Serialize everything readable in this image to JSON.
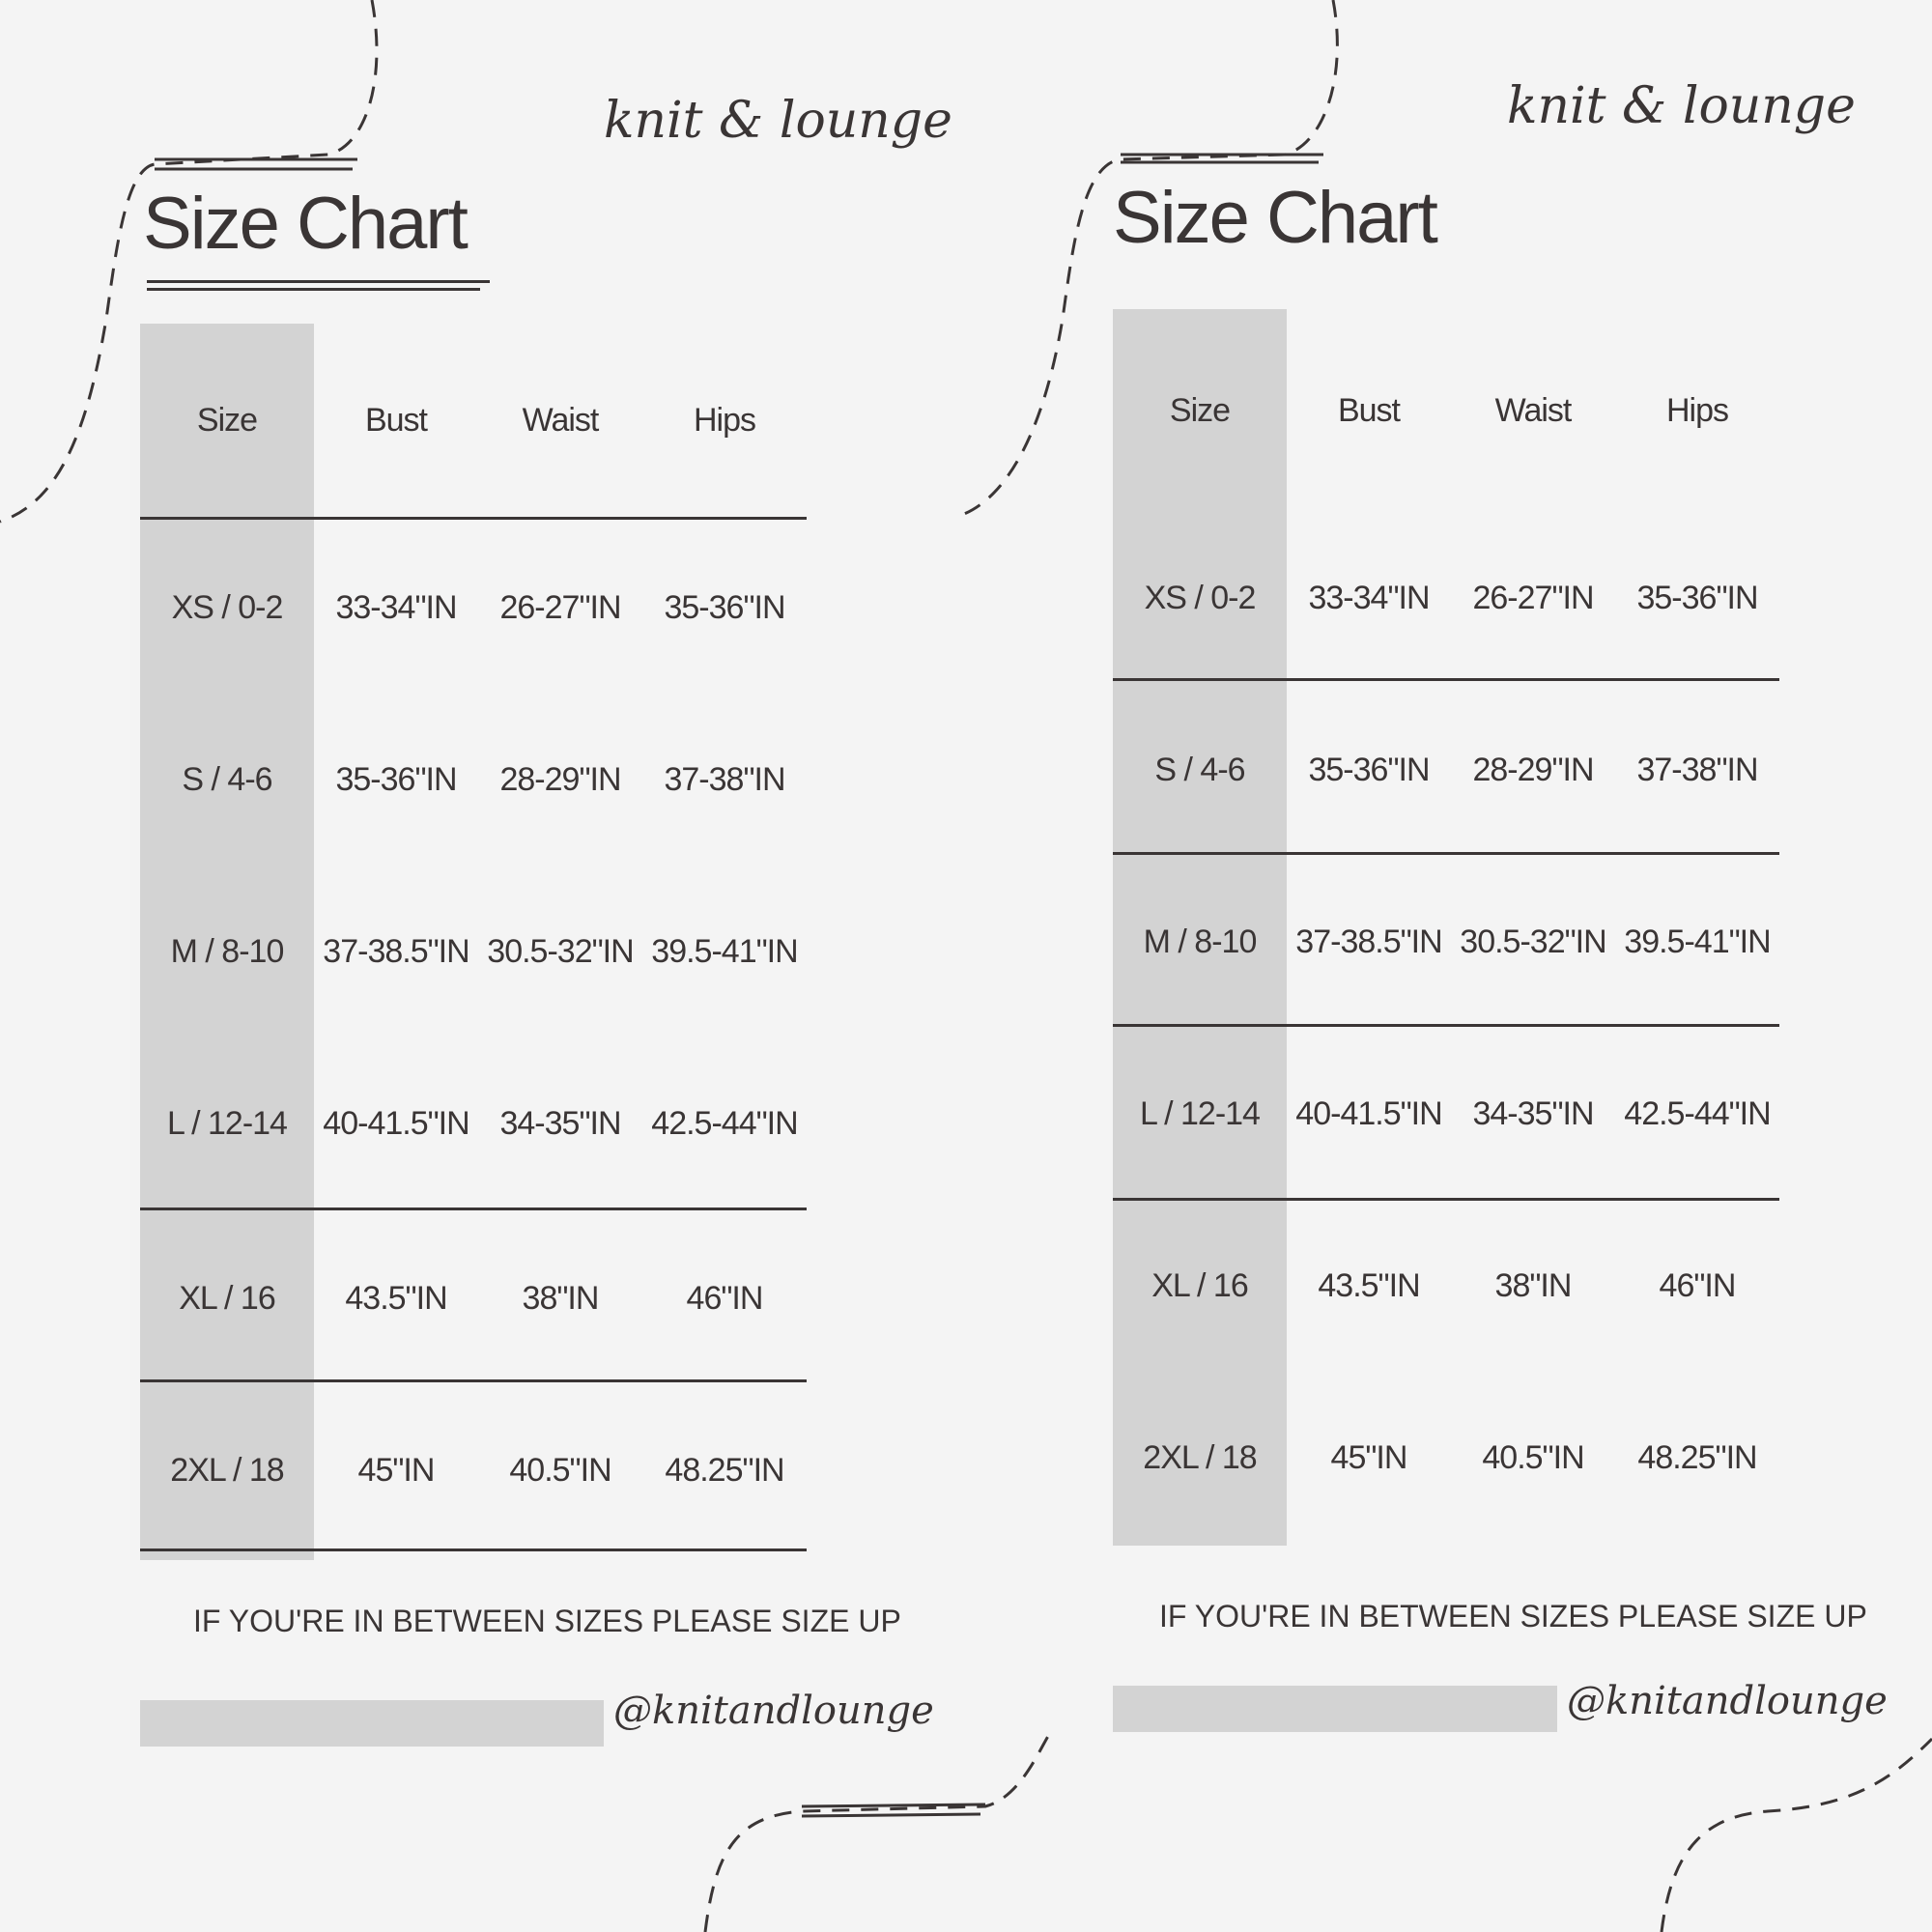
{
  "brand": {
    "logo_text": "knit & lounge",
    "handle": "@knitandlounge"
  },
  "chart": {
    "title": "Size Chart",
    "headers": [
      "Size",
      "Bust",
      "Waist",
      "Hips"
    ],
    "rows": [
      [
        "XS / 0-2",
        "33-34\"IN",
        "26-27\"IN",
        "35-36\"IN"
      ],
      [
        "S / 4-6",
        "35-36\"IN",
        "28-29\"IN",
        "37-38\"IN"
      ],
      [
        "M / 8-10",
        "37-38.5\"IN",
        "30.5-32\"IN",
        "39.5-41\"IN"
      ],
      [
        "L / 12-14",
        "40-41.5\"IN",
        "34-35\"IN",
        "42.5-44\"IN"
      ],
      [
        "XL / 16",
        "43.5\"IN",
        "38\"IN",
        "46\"IN"
      ],
      [
        "2XL / 18",
        "45\"IN",
        "40.5\"IN",
        "48.25\"IN"
      ]
    ],
    "note": "IF YOU'RE IN BETWEEN SIZES PLEASE SIZE UP"
  },
  "colors": {
    "background": "#f4f4f4",
    "size_column": "#d3d3d3",
    "text": "#3a3535"
  }
}
